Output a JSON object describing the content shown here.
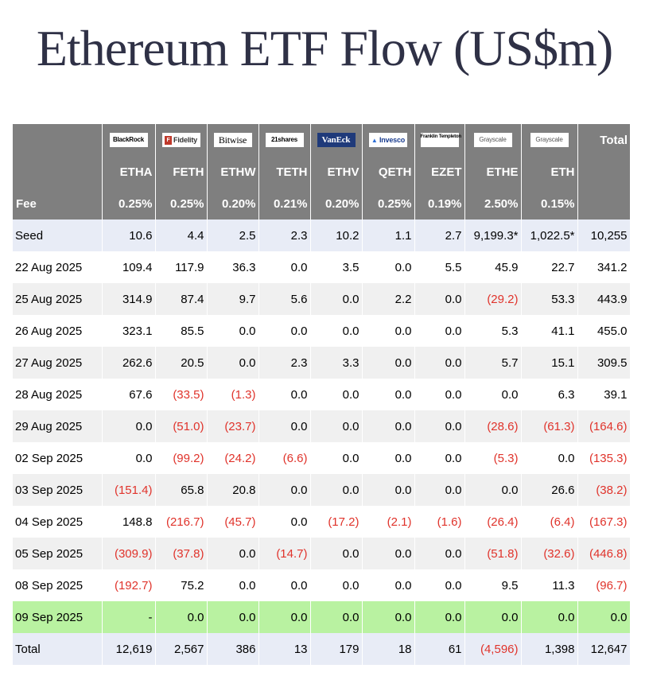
{
  "title": "Ethereum ETF Flow (US$m)",
  "chart_data": {
    "type": "table",
    "issuers": [
      "BlackRock",
      "Fidelity",
      "Bitwise",
      "21shares",
      "VanEck",
      "Invesco",
      "Franklin Templeton",
      "Grayscale",
      "Grayscale"
    ],
    "total_header": "Total",
    "tickers": [
      "ETHA",
      "FETH",
      "ETHW",
      "TETH",
      "ETHV",
      "QETH",
      "EZET",
      "ETHE",
      "ETH"
    ],
    "fee_label": "Fee",
    "fees": [
      "0.25%",
      "0.25%",
      "0.20%",
      "0.21%",
      "0.20%",
      "0.25%",
      "0.19%",
      "2.50%",
      "0.15%"
    ],
    "rows": [
      {
        "label": "Seed",
        "values": [
          "10.6",
          "4.4",
          "2.5",
          "2.3",
          "10.2",
          "1.1",
          "2.7",
          "9,199.3*",
          "1,022.5*"
        ],
        "total": "10,255",
        "style": "seed"
      },
      {
        "label": "22 Aug 2025",
        "values": [
          "109.4",
          "117.9",
          "36.3",
          "0.0",
          "3.5",
          "0.0",
          "5.5",
          "45.9",
          "22.7"
        ],
        "total": "341.2",
        "style": "white"
      },
      {
        "label": "25 Aug 2025",
        "values": [
          "314.9",
          "87.4",
          "9.7",
          "5.6",
          "0.0",
          "2.2",
          "0.0",
          "(29.2)",
          "53.3"
        ],
        "total": "443.9",
        "style": "grey"
      },
      {
        "label": "26 Aug 2025",
        "values": [
          "323.1",
          "85.5",
          "0.0",
          "0.0",
          "0.0",
          "0.0",
          "0.0",
          "5.3",
          "41.1"
        ],
        "total": "455.0",
        "style": "white"
      },
      {
        "label": "27 Aug 2025",
        "values": [
          "262.6",
          "20.5",
          "0.0",
          "2.3",
          "3.3",
          "0.0",
          "0.0",
          "5.7",
          "15.1"
        ],
        "total": "309.5",
        "style": "grey"
      },
      {
        "label": "28 Aug 2025",
        "values": [
          "67.6",
          "(33.5)",
          "(1.3)",
          "0.0",
          "0.0",
          "0.0",
          "0.0",
          "0.0",
          "6.3"
        ],
        "total": "39.1",
        "style": "white"
      },
      {
        "label": "29 Aug 2025",
        "values": [
          "0.0",
          "(51.0)",
          "(23.7)",
          "0.0",
          "0.0",
          "0.0",
          "0.0",
          "(28.6)",
          "(61.3)"
        ],
        "total": "(164.6)",
        "style": "grey"
      },
      {
        "label": "02 Sep 2025",
        "values": [
          "0.0",
          "(99.2)",
          "(24.2)",
          "(6.6)",
          "0.0",
          "0.0",
          "0.0",
          "(5.3)",
          "0.0"
        ],
        "total": "(135.3)",
        "style": "white"
      },
      {
        "label": "03 Sep 2025",
        "values": [
          "(151.4)",
          "65.8",
          "20.8",
          "0.0",
          "0.0",
          "0.0",
          "0.0",
          "0.0",
          "26.6"
        ],
        "total": "(38.2)",
        "style": "grey"
      },
      {
        "label": "04 Sep 2025",
        "values": [
          "148.8",
          "(216.7)",
          "(45.7)",
          "0.0",
          "(17.2)",
          "(2.1)",
          "(1.6)",
          "(26.4)",
          "(6.4)"
        ],
        "total": "(167.3)",
        "style": "white"
      },
      {
        "label": "05 Sep 2025",
        "values": [
          "(309.9)",
          "(37.8)",
          "0.0",
          "(14.7)",
          "0.0",
          "0.0",
          "0.0",
          "(51.8)",
          "(32.6)"
        ],
        "total": "(446.8)",
        "style": "grey"
      },
      {
        "label": "08 Sep 2025",
        "values": [
          "(192.7)",
          "75.2",
          "0.0",
          "0.0",
          "0.0",
          "0.0",
          "0.0",
          "9.5",
          "11.3"
        ],
        "total": "(96.7)",
        "style": "white"
      },
      {
        "label": "09 Sep 2025",
        "values": [
          "-",
          "0.0",
          "0.0",
          "0.0",
          "0.0",
          "0.0",
          "0.0",
          "0.0",
          "0.0"
        ],
        "total": "0.0",
        "style": "green"
      },
      {
        "label": "Total",
        "values": [
          "12,619",
          "2,567",
          "386",
          "13",
          "179",
          "18",
          "61",
          "(4,596)",
          "1,398"
        ],
        "total": "12,647",
        "style": "total"
      }
    ]
  }
}
